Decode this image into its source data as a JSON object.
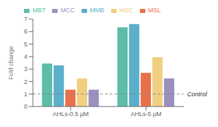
{
  "chart_data": {
    "type": "bar",
    "categories": [
      "AHLs-0.5 μM",
      "AHLs-5 μM"
    ],
    "series": [
      {
        "name": "MBT",
        "color": "#5bbdaa",
        "values": [
          3.45,
          6.35
        ]
      },
      {
        "name": "MMB",
        "color": "#5aafca",
        "values": [
          3.3,
          6.6
        ]
      },
      {
        "name": "MSL",
        "color": "#e8714a",
        "values": [
          1.35,
          2.7
        ]
      },
      {
        "name": "MSC",
        "color": "#f0d080",
        "values": [
          2.25,
          3.95
        ]
      },
      {
        "name": "MCC",
        "color": "#9b8fc0",
        "values": [
          1.35,
          2.25
        ]
      }
    ],
    "ylabel": "Fold change",
    "ylim": [
      0,
      7
    ],
    "yticks": [
      0,
      1,
      2,
      3,
      4,
      5,
      6,
      7
    ],
    "legend": "top",
    "grid": false,
    "annotations": [
      {
        "text": "Control",
        "y": 1.0,
        "color": "#888888",
        "line_style": "dashed"
      }
    ]
  }
}
